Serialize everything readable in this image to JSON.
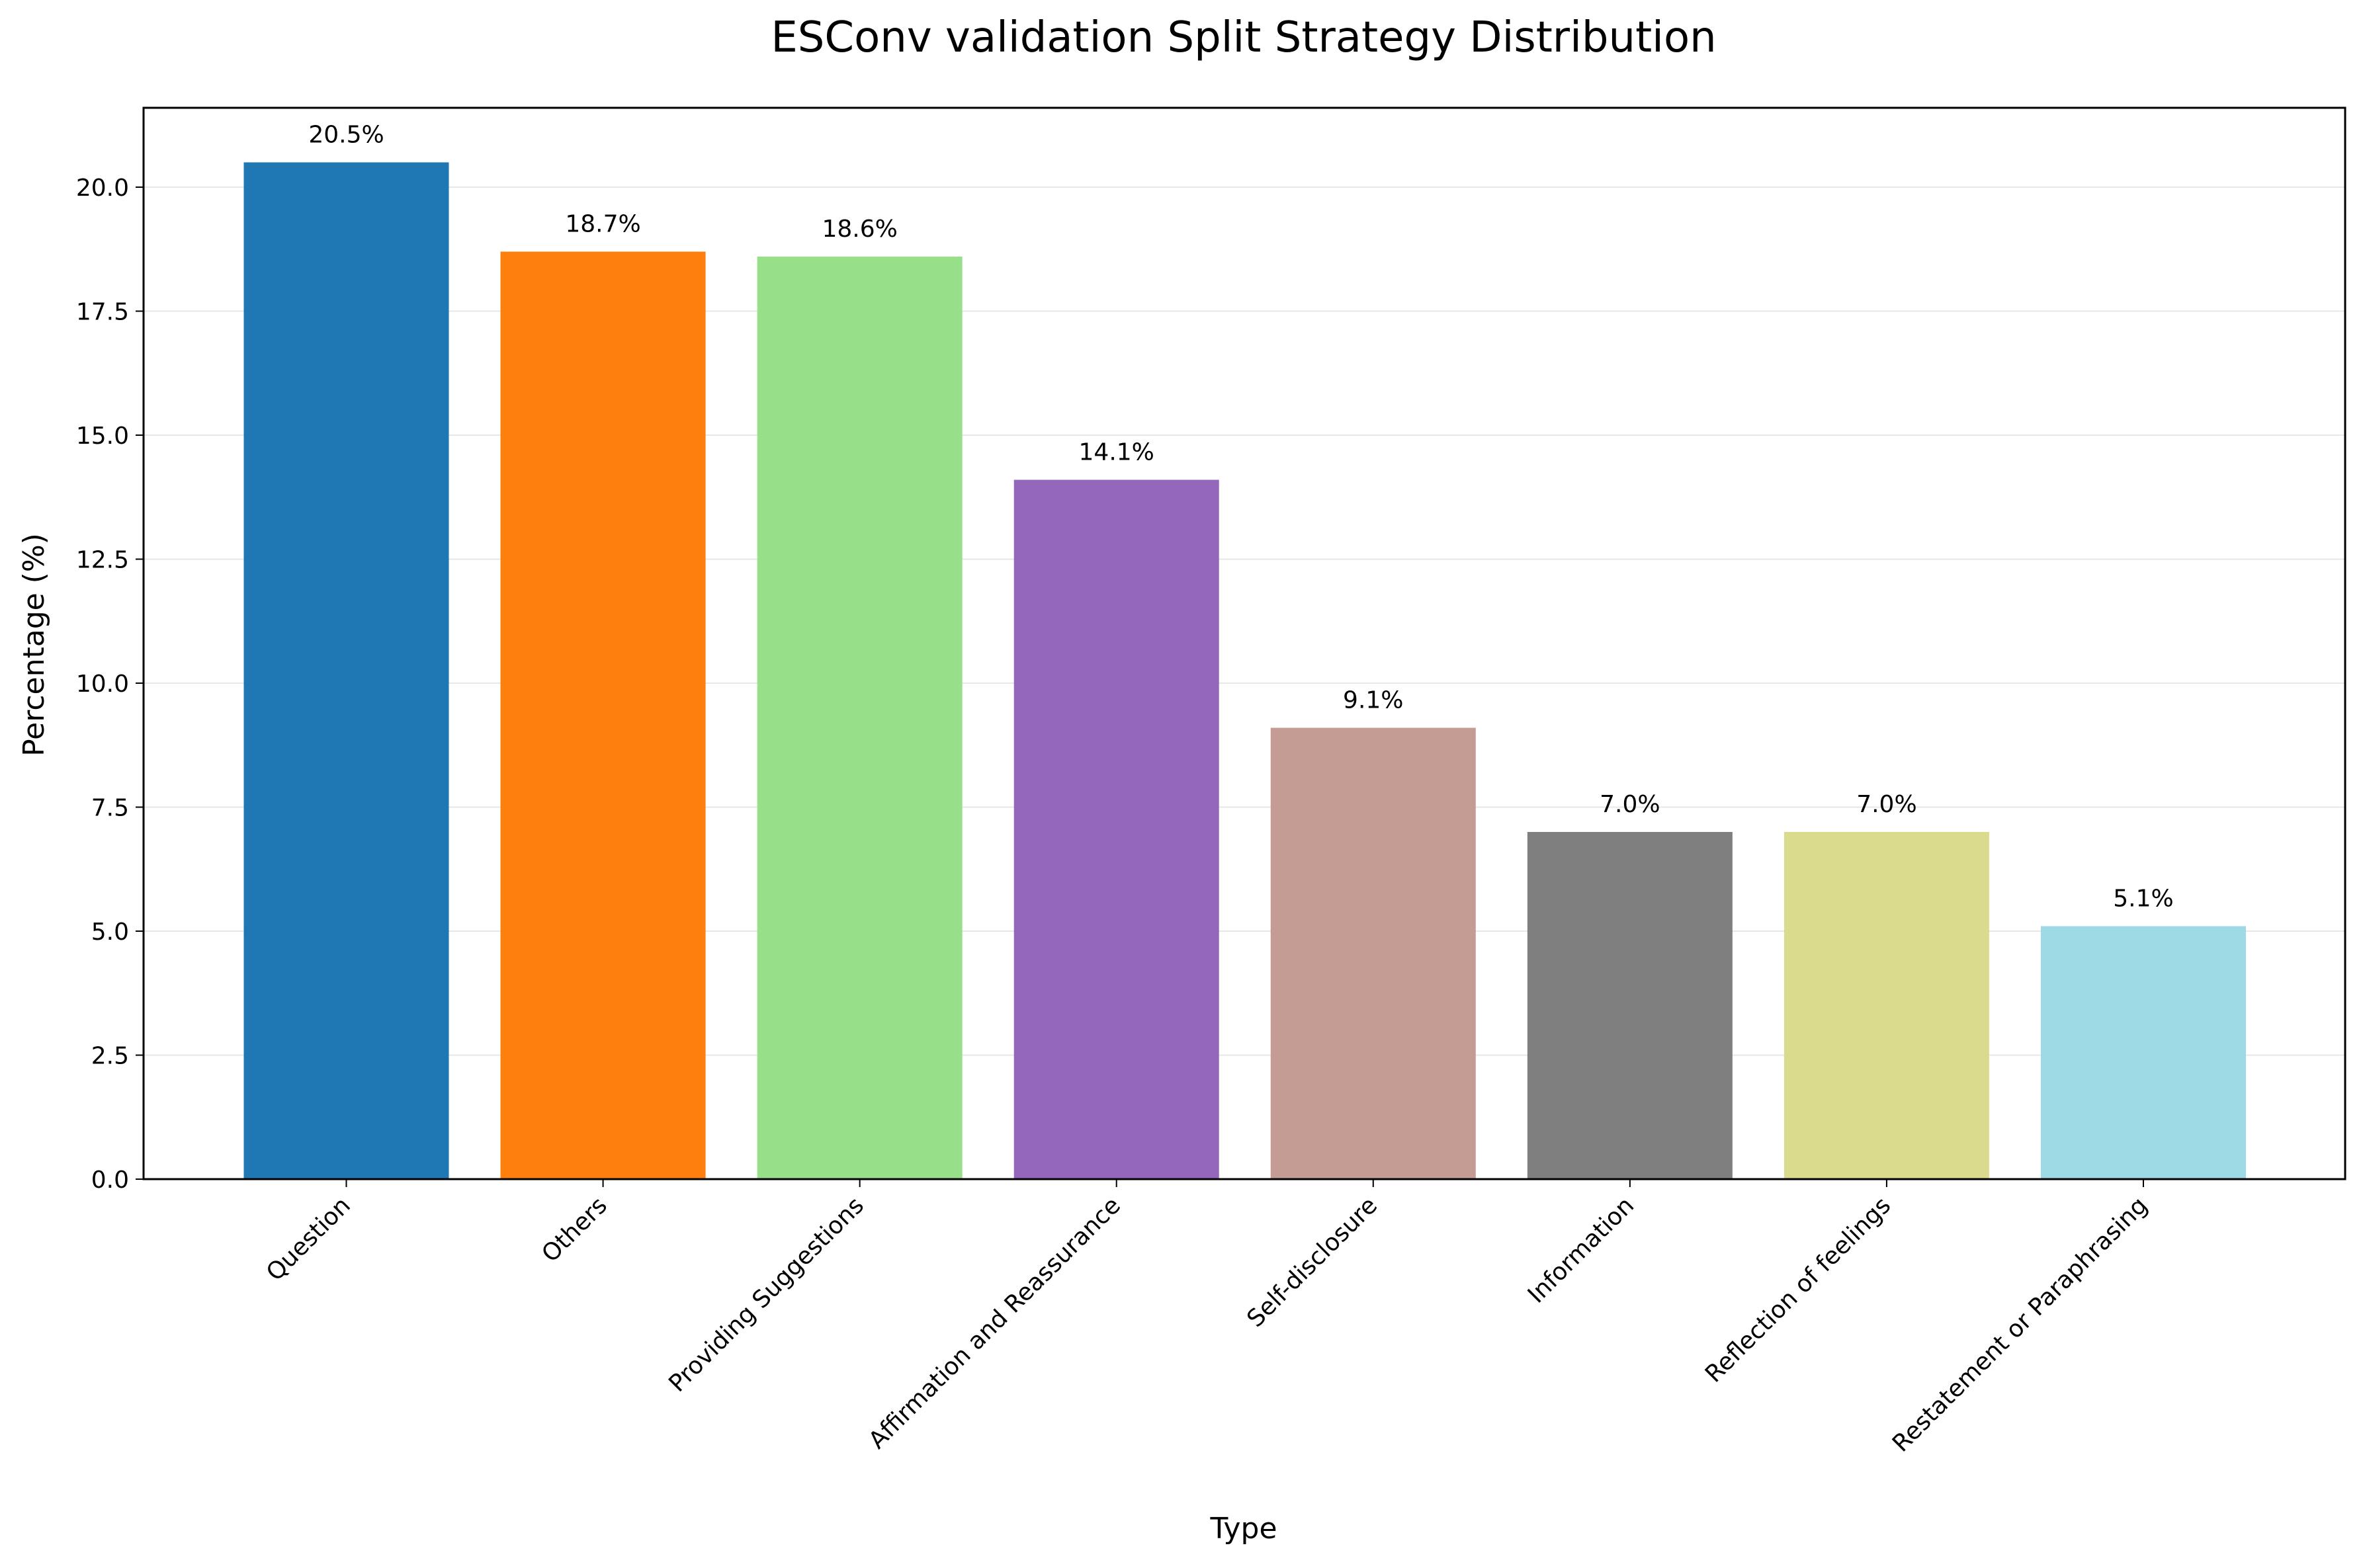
{
  "chart_data": {
    "type": "bar",
    "title": "ESConv validation Split Strategy Distribution",
    "xlabel": "Type",
    "ylabel": "Percentage (%)",
    "ylim": [
      0,
      21.6
    ],
    "yticks": [
      "0.0",
      "2.5",
      "5.0",
      "7.5",
      "10.0",
      "12.5",
      "15.0",
      "17.5",
      "20.0"
    ],
    "grid": "horizontal",
    "categories": [
      "Question",
      "Others",
      "Providing Suggestions",
      "Affirmation and Reassurance",
      "Self-disclosure",
      "Information",
      "Reflection of feelings",
      "Restatement or Paraphrasing"
    ],
    "values": [
      20.5,
      18.7,
      18.6,
      14.1,
      9.1,
      7.0,
      7.0,
      5.1
    ],
    "value_labels": [
      "20.5%",
      "18.7%",
      "18.6%",
      "14.1%",
      "9.1%",
      "7.0%",
      "7.0%",
      "5.1%"
    ],
    "colors": [
      "#1f77b4",
      "#ff7f0e",
      "#98df8a",
      "#9467bd",
      "#c49c94",
      "#7f7f7f",
      "#dbdb8d",
      "#9edae5"
    ]
  }
}
